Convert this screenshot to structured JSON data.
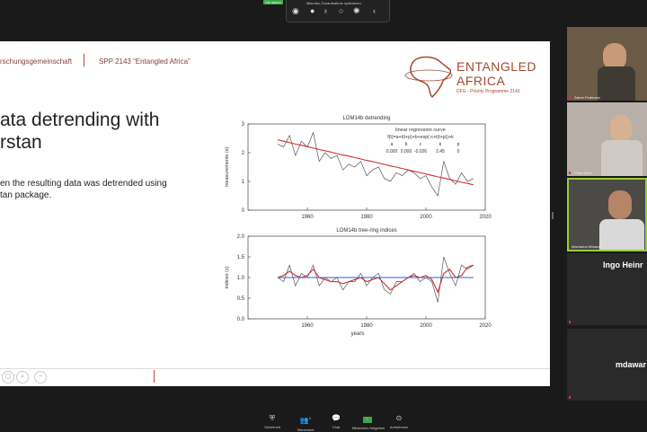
{
  "topbar": {
    "caption": "Mikrofon-Tonaufnahme optimieren",
    "green_label": "Sie sehen"
  },
  "slide": {
    "header_left": "rschungsgemeinschaft",
    "header_right": "SPP 2143 “Entangled Africa”",
    "logo_line1": "ENTANGLED",
    "logo_line2": "AFRICA",
    "logo_line3": "DFG - Priority Programme 2143",
    "title_line1": "ata detrending with",
    "title_line2": "rstan",
    "body_line1": "en the resulting data was detrended using",
    "body_line2": "tan package."
  },
  "participants": [
    {
      "name": "Søren Pedersen",
      "big": ""
    },
    {
      "name": "Clara Sziel",
      "big": ""
    },
    {
      "name": "Mamadou Mdawar",
      "big": ""
    },
    {
      "name": "",
      "big": "Ingo Heinr"
    },
    {
      "name": "",
      "big": "mdawar"
    }
  ],
  "toolbar": {
    "items": [
      {
        "label": "Sicherheit",
        "icon": "shield-icon"
      },
      {
        "label": "Teilnehmer",
        "icon": "participants-icon",
        "count": "1"
      },
      {
        "label": "Chat",
        "icon": "chat-icon"
      },
      {
        "label": "Bildschirm freigeben",
        "icon": "share-screen-icon"
      },
      {
        "label": "Aufnehmen",
        "icon": "record-icon"
      }
    ]
  },
  "chart_data": [
    {
      "type": "line",
      "title": "LOM14b detrending",
      "annotation_title": "linear regression curve",
      "formula": "f(t)=a+t(t+p)+b+exp(-c+t(t+p))+k",
      "param_names": [
        "a",
        "b",
        "c",
        "k",
        "p"
      ],
      "param_values": [
        "0.000",
        "0.000",
        "-0.026",
        "2.45",
        "0"
      ],
      "xlabel": "",
      "ylabel": "measurements (s)",
      "xlim": [
        1940,
        2020
      ],
      "ylim": [
        0,
        3
      ],
      "xticks": [
        "1960",
        "1980",
        "2000",
        "2020"
      ],
      "yticks": [
        "0",
        "1",
        "2",
        "3"
      ],
      "x": [
        1950,
        1952,
        1954,
        1956,
        1958,
        1960,
        1962,
        1964,
        1966,
        1968,
        1970,
        1972,
        1974,
        1976,
        1978,
        1980,
        1982,
        1984,
        1986,
        1988,
        1990,
        1992,
        1994,
        1996,
        1998,
        2000,
        2002,
        2004,
        2006,
        2008,
        2010,
        2012,
        2014,
        2016
      ],
      "series": [
        {
          "values": [
            2.3,
            2.2,
            2.6,
            1.9,
            2.4,
            2.2,
            2.7,
            1.7,
            2.0,
            1.8,
            1.9,
            1.4,
            1.6,
            1.5,
            1.7,
            1.2,
            1.4,
            1.5,
            1.1,
            1.0,
            1.3,
            1.2,
            1.4,
            1.3,
            1.1,
            1.2,
            0.8,
            0.5,
            1.7,
            1.1,
            0.9,
            1.3,
            1.0,
            1.1
          ],
          "color": "#555555"
        },
        {
          "values": [
            2.45,
            2.4,
            2.35,
            2.3,
            2.26,
            2.21,
            2.16,
            2.11,
            2.07,
            2.02,
            1.97,
            1.92,
            1.88,
            1.83,
            1.78,
            1.73,
            1.69,
            1.64,
            1.59,
            1.54,
            1.5,
            1.45,
            1.4,
            1.35,
            1.31,
            1.26,
            1.21,
            1.16,
            1.12,
            1.07,
            1.02,
            0.97,
            0.93,
            0.88
          ],
          "color": "#d32f2f"
        }
      ]
    },
    {
      "type": "line",
      "title": "LOM14b tree-ring indices",
      "xlabel": "years",
      "ylabel": "indices (z)",
      "xlim": [
        1940,
        2020
      ],
      "ylim": [
        0,
        2
      ],
      "xticks": [
        "1960",
        "1980",
        "2000",
        "2020"
      ],
      "yticks": [
        "0.0",
        "0.5",
        "1.0",
        "1.5",
        "2.0"
      ],
      "x": [
        1950,
        1952,
        1954,
        1956,
        1958,
        1960,
        1962,
        1964,
        1966,
        1968,
        1970,
        1972,
        1974,
        1976,
        1978,
        1980,
        1982,
        1984,
        1986,
        1988,
        1990,
        1992,
        1994,
        1996,
        1998,
        2000,
        2002,
        2004,
        2006,
        2008,
        2010,
        2012,
        2014,
        2016
      ],
      "series": [
        {
          "values": [
            1.0,
            0.9,
            1.3,
            0.8,
            1.1,
            1.0,
            1.3,
            0.8,
            1.0,
            0.9,
            1.0,
            0.7,
            0.9,
            0.9,
            1.1,
            0.8,
            1.0,
            1.1,
            0.7,
            0.6,
            0.9,
            0.9,
            1.0,
            1.1,
            0.9,
            1.0,
            0.9,
            0.4,
            1.5,
            1.1,
            0.8,
            1.3,
            1.2,
            1.3
          ],
          "color": "#555555"
        },
        {
          "values": [
            1.0,
            1.05,
            1.15,
            1.05,
            1.0,
            1.05,
            1.2,
            1.0,
            0.95,
            0.9,
            0.9,
            0.85,
            0.9,
            0.95,
            1.0,
            0.9,
            0.95,
            1.0,
            0.85,
            0.7,
            0.8,
            0.9,
            1.0,
            1.05,
            1.0,
            1.05,
            0.95,
            0.65,
            1.1,
            1.2,
            1.0,
            1.05,
            1.25,
            1.3
          ],
          "color": "#d32f2f"
        },
        {
          "values": [
            1.0,
            1.0,
            1.0,
            1.0,
            1.0,
            1.0,
            1.0,
            1.0,
            1.0,
            1.0,
            1.0,
            1.0,
            1.0,
            1.0,
            1.0,
            1.0,
            1.0,
            1.0,
            1.0,
            1.0,
            1.0,
            1.0,
            1.0,
            1.0,
            1.0,
            1.0,
            1.0,
            1.0,
            1.0,
            1.0,
            1.0,
            1.0,
            1.0,
            1.0
          ],
          "color": "#3a5ec8"
        }
      ]
    }
  ]
}
